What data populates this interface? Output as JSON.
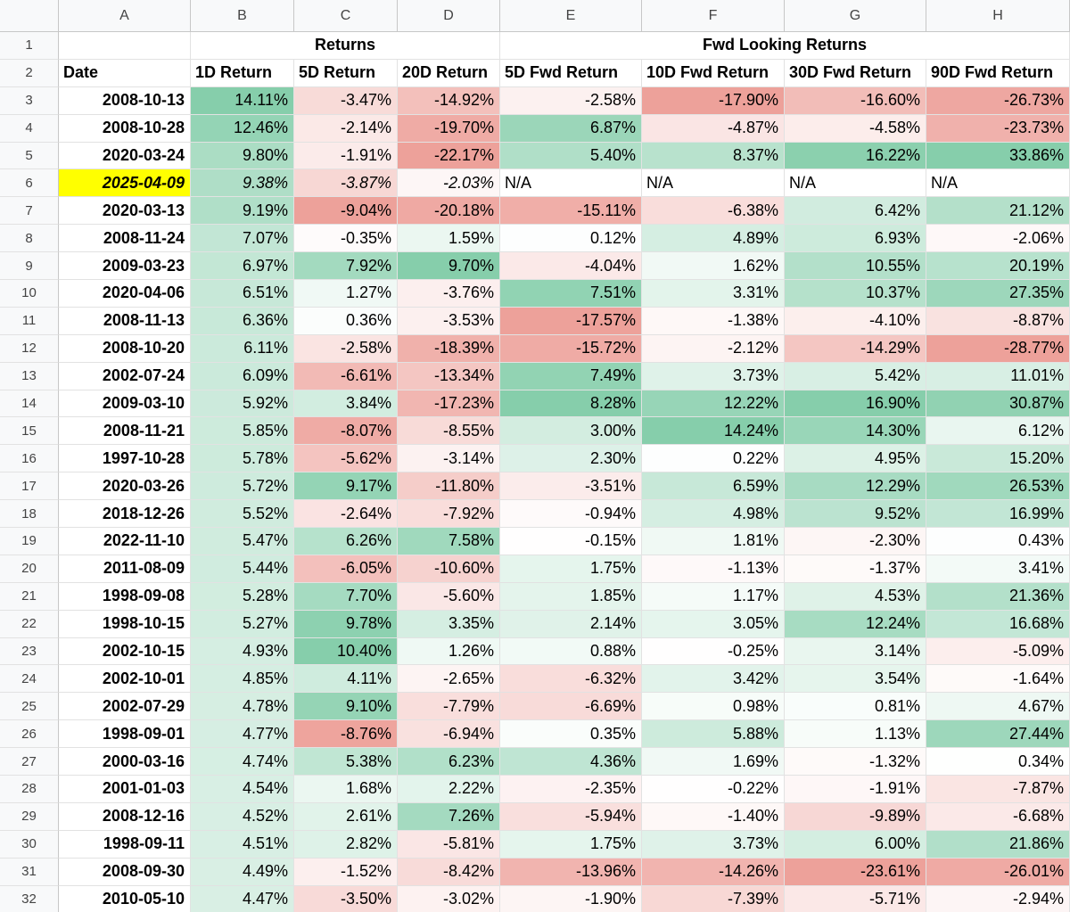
{
  "columns": [
    "A",
    "B",
    "C",
    "D",
    "E",
    "F",
    "G",
    "H"
  ],
  "group_headers": [
    "Returns",
    "Fwd Looking Returns"
  ],
  "headers": [
    "Date",
    "1D Return",
    "5D Return",
    "20D Return",
    "5D Fwd Return",
    "10D Fwd Return",
    "30D Fwd Return",
    "90D Fwd Return"
  ],
  "scale": {
    "positive_color": "#57bb8a",
    "negative_color": "#e67c73",
    "highlight_color": "#ffff00"
  },
  "highlight_row_index": 3,
  "rows": [
    {
      "num": "3",
      "date": "2008-10-13",
      "values": [
        "14.11%",
        "-3.47%",
        "-14.92%",
        "-2.58%",
        "-17.90%",
        "-16.60%",
        "-26.73%"
      ]
    },
    {
      "num": "4",
      "date": "2008-10-28",
      "values": [
        "12.46%",
        "-2.14%",
        "-19.70%",
        "6.87%",
        "-4.87%",
        "-4.58%",
        "-23.73%"
      ]
    },
    {
      "num": "5",
      "date": "2020-03-24",
      "values": [
        "9.80%",
        "-1.91%",
        "-22.17%",
        "5.40%",
        "8.37%",
        "16.22%",
        "33.86%"
      ]
    },
    {
      "num": "6",
      "date": "2025-04-09",
      "values": [
        "9.38%",
        "-3.87%",
        "-2.03%",
        "N/A",
        "N/A",
        "N/A",
        "N/A"
      ]
    },
    {
      "num": "7",
      "date": "2020-03-13",
      "values": [
        "9.19%",
        "-9.04%",
        "-20.18%",
        "-15.11%",
        "-6.38%",
        "6.42%",
        "21.12%"
      ]
    },
    {
      "num": "8",
      "date": "2008-11-24",
      "values": [
        "7.07%",
        "-0.35%",
        "1.59%",
        "0.12%",
        "4.89%",
        "6.93%",
        "-2.06%"
      ]
    },
    {
      "num": "9",
      "date": "2009-03-23",
      "values": [
        "6.97%",
        "7.92%",
        "9.70%",
        "-4.04%",
        "1.62%",
        "10.55%",
        "20.19%"
      ]
    },
    {
      "num": "10",
      "date": "2020-04-06",
      "values": [
        "6.51%",
        "1.27%",
        "-3.76%",
        "7.51%",
        "3.31%",
        "10.37%",
        "27.35%"
      ]
    },
    {
      "num": "11",
      "date": "2008-11-13",
      "values": [
        "6.36%",
        "0.36%",
        "-3.53%",
        "-17.57%",
        "-1.38%",
        "-4.10%",
        "-8.87%"
      ]
    },
    {
      "num": "12",
      "date": "2008-10-20",
      "values": [
        "6.11%",
        "-2.58%",
        "-18.39%",
        "-15.72%",
        "-2.12%",
        "-14.29%",
        "-28.77%"
      ]
    },
    {
      "num": "13",
      "date": "2002-07-24",
      "values": [
        "6.09%",
        "-6.61%",
        "-13.34%",
        "7.49%",
        "3.73%",
        "5.42%",
        "11.01%"
      ]
    },
    {
      "num": "14",
      "date": "2009-03-10",
      "values": [
        "5.92%",
        "3.84%",
        "-17.23%",
        "8.28%",
        "12.22%",
        "16.90%",
        "30.87%"
      ]
    },
    {
      "num": "15",
      "date": "2008-11-21",
      "values": [
        "5.85%",
        "-8.07%",
        "-8.55%",
        "3.00%",
        "14.24%",
        "14.30%",
        "6.12%"
      ]
    },
    {
      "num": "16",
      "date": "1997-10-28",
      "values": [
        "5.78%",
        "-5.62%",
        "-3.14%",
        "2.30%",
        "0.22%",
        "4.95%",
        "15.20%"
      ]
    },
    {
      "num": "17",
      "date": "2020-03-26",
      "values": [
        "5.72%",
        "9.17%",
        "-11.80%",
        "-3.51%",
        "6.59%",
        "12.29%",
        "26.53%"
      ]
    },
    {
      "num": "18",
      "date": "2018-12-26",
      "values": [
        "5.52%",
        "-2.64%",
        "-7.92%",
        "-0.94%",
        "4.98%",
        "9.52%",
        "16.99%"
      ]
    },
    {
      "num": "19",
      "date": "2022-11-10",
      "values": [
        "5.47%",
        "6.26%",
        "7.58%",
        "-0.15%",
        "1.81%",
        "-2.30%",
        "0.43%"
      ]
    },
    {
      "num": "20",
      "date": "2011-08-09",
      "values": [
        "5.44%",
        "-6.05%",
        "-10.60%",
        "1.75%",
        "-1.13%",
        "-1.37%",
        "3.41%"
      ]
    },
    {
      "num": "21",
      "date": "1998-09-08",
      "values": [
        "5.28%",
        "7.70%",
        "-5.60%",
        "1.85%",
        "1.17%",
        "4.53%",
        "21.36%"
      ]
    },
    {
      "num": "22",
      "date": "1998-10-15",
      "values": [
        "5.27%",
        "9.78%",
        "3.35%",
        "2.14%",
        "3.05%",
        "12.24%",
        "16.68%"
      ]
    },
    {
      "num": "23",
      "date": "2002-10-15",
      "values": [
        "4.93%",
        "10.40%",
        "1.26%",
        "0.88%",
        "-0.25%",
        "3.14%",
        "-5.09%"
      ]
    },
    {
      "num": "24",
      "date": "2002-10-01",
      "values": [
        "4.85%",
        "4.11%",
        "-2.65%",
        "-6.32%",
        "3.42%",
        "3.54%",
        "-1.64%"
      ]
    },
    {
      "num": "25",
      "date": "2002-07-29",
      "values": [
        "4.78%",
        "9.10%",
        "-7.79%",
        "-6.69%",
        "0.98%",
        "0.81%",
        "4.67%"
      ]
    },
    {
      "num": "26",
      "date": "1998-09-01",
      "values": [
        "4.77%",
        "-8.76%",
        "-6.94%",
        "0.35%",
        "5.88%",
        "1.13%",
        "27.44%"
      ]
    },
    {
      "num": "27",
      "date": "2000-03-16",
      "values": [
        "4.74%",
        "5.38%",
        "6.23%",
        "4.36%",
        "1.69%",
        "-1.32%",
        "0.34%"
      ]
    },
    {
      "num": "28",
      "date": "2001-01-03",
      "values": [
        "4.54%",
        "1.68%",
        "2.22%",
        "-2.35%",
        "-0.22%",
        "-1.91%",
        "-7.87%"
      ]
    },
    {
      "num": "29",
      "date": "2008-12-16",
      "values": [
        "4.52%",
        "2.61%",
        "7.26%",
        "-5.94%",
        "-1.40%",
        "-9.89%",
        "-6.68%"
      ]
    },
    {
      "num": "30",
      "date": "1998-09-11",
      "values": [
        "4.51%",
        "2.82%",
        "-5.81%",
        "1.75%",
        "3.73%",
        "6.00%",
        "21.86%"
      ]
    },
    {
      "num": "31",
      "date": "2008-09-30",
      "values": [
        "4.49%",
        "-1.52%",
        "-8.42%",
        "-13.96%",
        "-14.26%",
        "-23.61%",
        "-26.01%"
      ]
    },
    {
      "num": "32",
      "date": "2010-05-10",
      "values": [
        "4.47%",
        "-3.50%",
        "-3.02%",
        "-1.90%",
        "-7.39%",
        "-5.71%",
        "-2.94%"
      ]
    }
  ]
}
